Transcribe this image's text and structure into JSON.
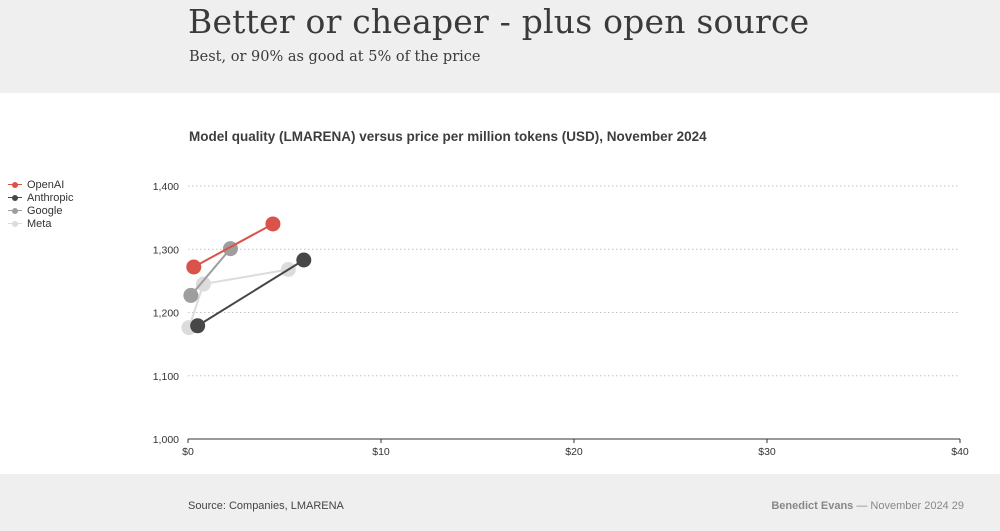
{
  "header": {
    "title": "Better or cheaper - plus open source",
    "subtitle": "Best, or 90% as good at 5% of the price"
  },
  "footer": {
    "source": "Source: Companies, LMARENA",
    "author": "Benedict Evans",
    "separator": "—",
    "date": "November 2024",
    "page": "29"
  },
  "colors": {
    "OpenAI": "#d9534a",
    "Anthropic": "#474747",
    "Google": "#9e9e9e",
    "Meta": "#dcdcdc"
  },
  "chart_data": {
    "type": "scatter",
    "title": "Model quality (LMARENA) versus price per million tokens (USD), November 2024",
    "xlabel": "",
    "ylabel": "",
    "xlim": [
      0,
      40
    ],
    "ylim": [
      1000,
      1400
    ],
    "x_ticks": [
      0,
      10,
      20,
      30,
      40
    ],
    "x_tick_labels": [
      "$0",
      "$10",
      "$20",
      "$30",
      "$40"
    ],
    "y_ticks": [
      1000,
      1100,
      1200,
      1300,
      1400
    ],
    "y_tick_labels": [
      "1,000",
      "1,100",
      "1,200",
      "1,300",
      "1,400"
    ],
    "grid": "horizontal dotted",
    "legend_position": "left",
    "series": [
      {
        "name": "OpenAI",
        "points": [
          {
            "x": 0.3,
            "y": 1272
          },
          {
            "x": 4.4,
            "y": 1340
          }
        ]
      },
      {
        "name": "Anthropic",
        "points": [
          {
            "x": 0.5,
            "y": 1179
          },
          {
            "x": 6.0,
            "y": 1283
          }
        ]
      },
      {
        "name": "Google",
        "points": [
          {
            "x": 0.15,
            "y": 1227
          },
          {
            "x": 2.2,
            "y": 1301
          }
        ]
      },
      {
        "name": "Meta",
        "points": [
          {
            "x": 0.05,
            "y": 1176
          },
          {
            "x": 0.8,
            "y": 1245
          },
          {
            "x": 5.2,
            "y": 1268
          }
        ]
      }
    ]
  }
}
